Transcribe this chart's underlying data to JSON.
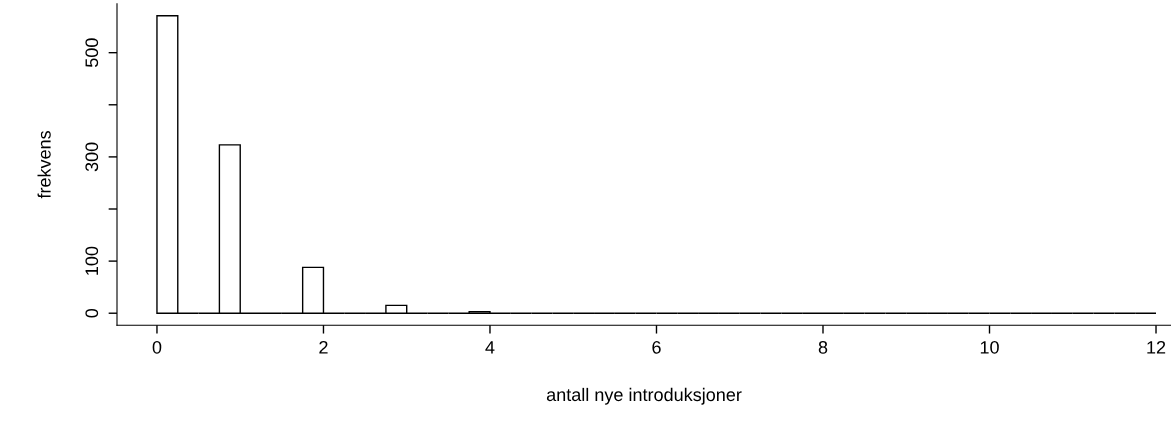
{
  "chart_data": {
    "type": "histogram",
    "xlabel": "antall nye introduksjoner",
    "ylabel": "frekvens",
    "bins": [
      0,
      0.25,
      0.5,
      0.75,
      1,
      1.25,
      1.5,
      1.75,
      2,
      2.25,
      2.5,
      2.75,
      3,
      3.25,
      3.5,
      3.75,
      4,
      4.25,
      4.5,
      4.75,
      5,
      5.25,
      5.5,
      5.75,
      6,
      6.25,
      6.5,
      6.75,
      7,
      7.25,
      7.5,
      7.75,
      8,
      8.25,
      8.5,
      8.75,
      9,
      9.25,
      9.5,
      9.75,
      10,
      10.25,
      10.5,
      10.75,
      11,
      11.25,
      11.5,
      11.75,
      12
    ],
    "values": [
      571,
      0,
      0,
      323,
      0,
      0,
      0,
      88,
      0,
      0,
      0,
      15,
      0,
      0,
      0,
      3,
      0,
      0,
      0,
      0,
      0,
      0,
      0,
      0,
      0,
      0,
      0,
      0,
      0,
      0,
      0,
      0,
      0,
      0,
      0,
      0,
      0,
      0,
      0,
      0,
      0,
      0,
      0,
      0,
      0,
      0,
      0,
      0
    ],
    "xlim": [
      -0.48,
      12.18
    ],
    "ylim": [
      -23,
      594
    ],
    "xticks": [
      0,
      2,
      4,
      6,
      8,
      10,
      12
    ],
    "yticks": [
      0,
      100,
      {
        "value": 200,
        "label": null
      },
      300,
      {
        "value": 400,
        "label": null
      },
      500
    ],
    "grid": false
  }
}
